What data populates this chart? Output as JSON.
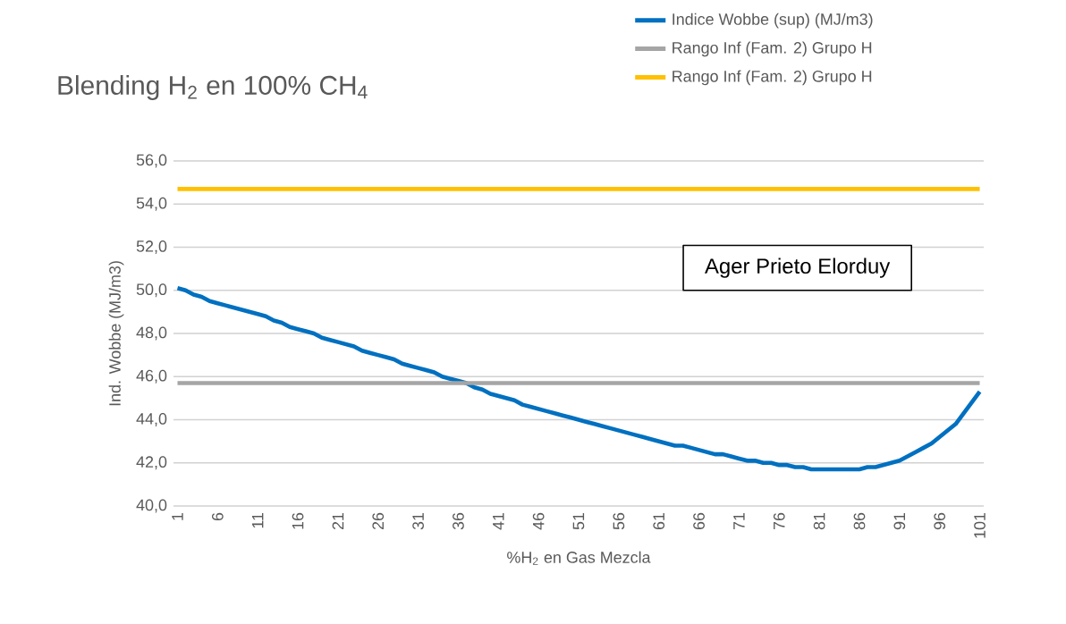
{
  "chart_data": {
    "type": "line",
    "title": "Blending H$_{2}$ en 100% CH$_{4}$",
    "xlabel": "%H$_{2}$ en Gas Mezcla",
    "ylabel": "Ind. Wobbe (MJ/m3)",
    "categories": [
      "1",
      null,
      null,
      null,
      null,
      "6",
      null,
      null,
      null,
      null,
      "11",
      null,
      null,
      null,
      null,
      "16",
      null,
      null,
      null,
      null,
      "21",
      null,
      null,
      null,
      null,
      "26",
      null,
      null,
      null,
      null,
      "31",
      null,
      null,
      null,
      null,
      "36",
      null,
      null,
      null,
      null,
      "41",
      null,
      null,
      null,
      null,
      "46",
      null,
      null,
      null,
      null,
      "51",
      null,
      null,
      null,
      null,
      "56",
      null,
      null,
      null,
      null,
      "61",
      null,
      null,
      null,
      null,
      "66",
      null,
      null,
      null,
      null,
      "71",
      null,
      null,
      null,
      null,
      "76",
      null,
      null,
      null,
      null,
      "81",
      null,
      null,
      null,
      null,
      "86",
      null,
      null,
      null,
      null,
      "91",
      null,
      null,
      null,
      null,
      "96",
      null,
      null,
      null,
      null,
      "101"
    ],
    "series": [
      {
        "name": "Indice Wobbe (sup) (MJ/m3)",
        "color": "#0070c0",
        "values": [
          50.1,
          50.0,
          49.8,
          49.7,
          49.5,
          49.4,
          49.3,
          49.2,
          49.1,
          49.0,
          48.9,
          48.8,
          48.6,
          48.5,
          48.3,
          48.2,
          48.1,
          48.0,
          47.8,
          47.7,
          47.6,
          47.5,
          47.4,
          47.2,
          47.1,
          47.0,
          46.9,
          46.8,
          46.6,
          46.5,
          46.4,
          46.3,
          46.2,
          46.0,
          45.9,
          45.8,
          45.7,
          45.5,
          45.4,
          45.2,
          45.1,
          45.0,
          44.9,
          44.7,
          44.6,
          44.5,
          44.4,
          44.3,
          44.2,
          44.1,
          44.0,
          43.9,
          43.8,
          43.7,
          43.6,
          43.5,
          43.4,
          43.3,
          43.2,
          43.1,
          43.0,
          42.9,
          42.8,
          42.8,
          42.7,
          42.6,
          42.5,
          42.4,
          42.4,
          42.3,
          42.2,
          42.1,
          42.1,
          42.0,
          42.0,
          41.9,
          41.9,
          41.8,
          41.8,
          41.7,
          41.7,
          41.7,
          41.7,
          41.7,
          41.7,
          41.7,
          41.8,
          41.8,
          41.9,
          42.0,
          42.1,
          42.3,
          42.5,
          42.7,
          42.9,
          43.2,
          43.5,
          43.8,
          44.3,
          44.8,
          45.3
        ]
      },
      {
        "name": "Rango Inf (Fam. 2) Grupo H",
        "color": "#a5a5a5",
        "values": [
          45.7,
          45.7,
          45.7,
          45.7,
          45.7,
          45.7,
          45.7,
          45.7,
          45.7,
          45.7,
          45.7,
          45.7,
          45.7,
          45.7,
          45.7,
          45.7,
          45.7,
          45.7,
          45.7,
          45.7,
          45.7,
          45.7,
          45.7,
          45.7,
          45.7,
          45.7,
          45.7,
          45.7,
          45.7,
          45.7,
          45.7,
          45.7,
          45.7,
          45.7,
          45.7,
          45.7,
          45.7,
          45.7,
          45.7,
          45.7,
          45.7,
          45.7,
          45.7,
          45.7,
          45.7,
          45.7,
          45.7,
          45.7,
          45.7,
          45.7,
          45.7,
          45.7,
          45.7,
          45.7,
          45.7,
          45.7,
          45.7,
          45.7,
          45.7,
          45.7,
          45.7,
          45.7,
          45.7,
          45.7,
          45.7,
          45.7,
          45.7,
          45.7,
          45.7,
          45.7,
          45.7,
          45.7,
          45.7,
          45.7,
          45.7,
          45.7,
          45.7,
          45.7,
          45.7,
          45.7,
          45.7,
          45.7,
          45.7,
          45.7,
          45.7,
          45.7,
          45.7,
          45.7,
          45.7,
          45.7,
          45.7,
          45.7,
          45.7,
          45.7,
          45.7,
          45.7,
          45.7,
          45.7,
          45.7,
          45.7,
          45.7
        ]
      },
      {
        "name": "Rango Inf (Fam. 2) Grupo H",
        "color": "#ffc000",
        "values": [
          54.7,
          54.7,
          54.7,
          54.7,
          54.7,
          54.7,
          54.7,
          54.7,
          54.7,
          54.7,
          54.7,
          54.7,
          54.7,
          54.7,
          54.7,
          54.7,
          54.7,
          54.7,
          54.7,
          54.7,
          54.7,
          54.7,
          54.7,
          54.7,
          54.7,
          54.7,
          54.7,
          54.7,
          54.7,
          54.7,
          54.7,
          54.7,
          54.7,
          54.7,
          54.7,
          54.7,
          54.7,
          54.7,
          54.7,
          54.7,
          54.7,
          54.7,
          54.7,
          54.7,
          54.7,
          54.7,
          54.7,
          54.7,
          54.7,
          54.7,
          54.7,
          54.7,
          54.7,
          54.7,
          54.7,
          54.7,
          54.7,
          54.7,
          54.7,
          54.7,
          54.7,
          54.7,
          54.7,
          54.7,
          54.7,
          54.7,
          54.7,
          54.7,
          54.7,
          54.7,
          54.7,
          54.7,
          54.7,
          54.7,
          54.7,
          54.7,
          54.7,
          54.7,
          54.7,
          54.7,
          54.7,
          54.7,
          54.7,
          54.7,
          54.7,
          54.7,
          54.7,
          54.7,
          54.7,
          54.7,
          54.7,
          54.7,
          54.7,
          54.7,
          54.7,
          54.7,
          54.7,
          54.7,
          54.7,
          54.7,
          54.7
        ]
      }
    ],
    "ylim": [
      40,
      56
    ],
    "yticks": [
      {
        "value": 40,
        "label": "40,0"
      },
      {
        "value": 42,
        "label": "42,0"
      },
      {
        "value": 44,
        "label": "44,0"
      },
      {
        "value": 46,
        "label": "46,0"
      },
      {
        "value": 48,
        "label": "48,0"
      },
      {
        "value": 50,
        "label": "50,0"
      },
      {
        "value": 52,
        "label": "52,0"
      },
      {
        "value": 54,
        "label": "54,0"
      },
      {
        "value": 56,
        "label": "56,0"
      }
    ],
    "grid": "y",
    "legend": "top right",
    "marker": "none",
    "line_style": "solid",
    "annotations": [
      "Ager Prieto Elorduy"
    ]
  }
}
